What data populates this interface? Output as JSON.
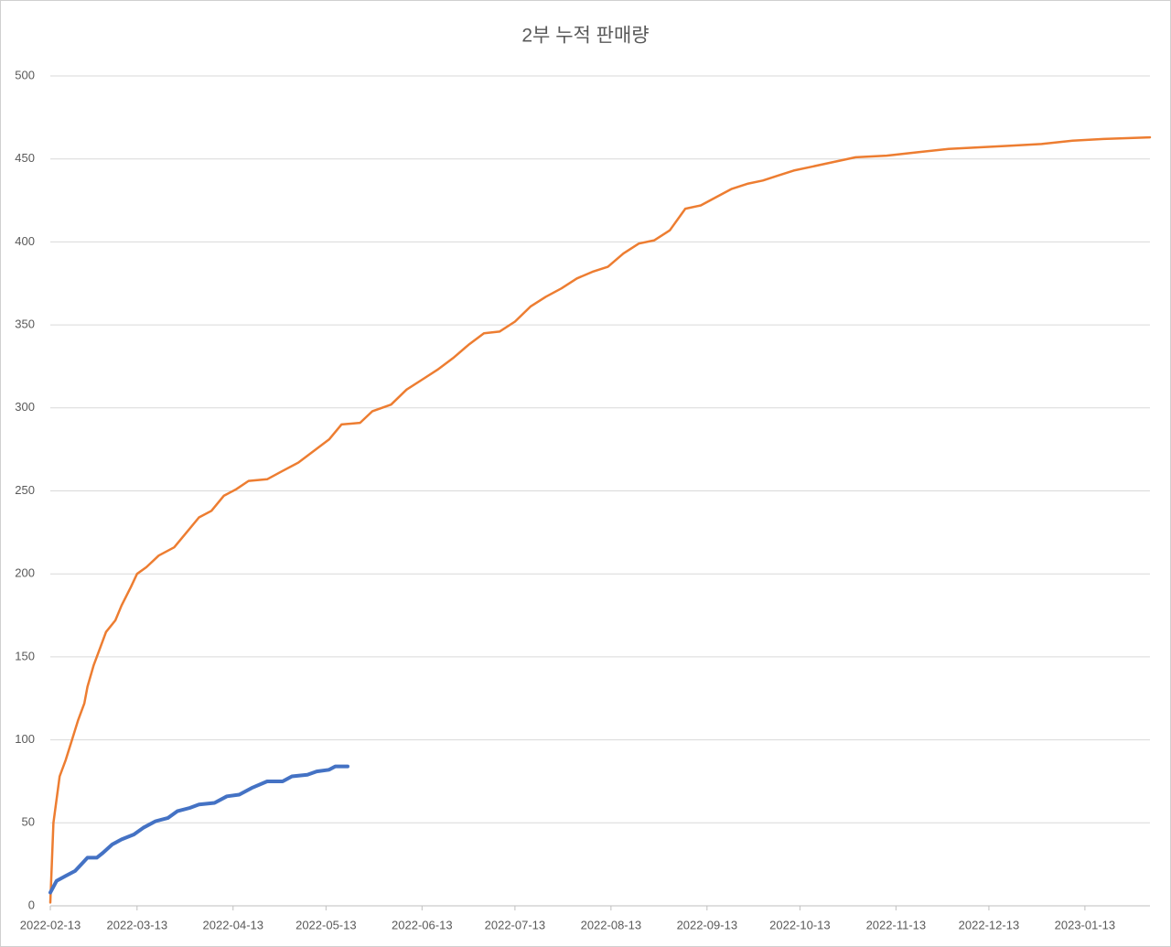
{
  "chart_data": {
    "type": "line",
    "title": "2부 누적 판매량",
    "xlim": [
      "2022-02-13",
      "2023-02-03"
    ],
    "xticks": [
      "2022-02-13",
      "2022-03-13",
      "2022-04-13",
      "2022-05-13",
      "2022-06-13",
      "2022-07-13",
      "2022-08-13",
      "2022-09-13",
      "2022-10-13",
      "2022-11-13",
      "2022-12-13",
      "2023-01-13"
    ],
    "ylim": [
      0,
      500
    ],
    "yticks": [
      0,
      50,
      100,
      150,
      200,
      250,
      300,
      350,
      400,
      450,
      500
    ],
    "grid": true,
    "series": [
      {
        "color": "#ed7d31",
        "width": 2.5,
        "x": [
          "2022-02-13",
          "2022-02-14",
          "2022-02-16",
          "2022-02-18",
          "2022-02-20",
          "2022-02-22",
          "2022-02-24",
          "2022-02-25",
          "2022-02-27",
          "2022-03-01",
          "2022-03-03",
          "2022-03-06",
          "2022-03-08",
          "2022-03-11",
          "2022-03-13",
          "2022-03-16",
          "2022-03-20",
          "2022-03-25",
          "2022-03-29",
          "2022-04-02",
          "2022-04-06",
          "2022-04-10",
          "2022-04-14",
          "2022-04-18",
          "2022-04-24",
          "2022-04-29",
          "2022-05-04",
          "2022-05-09",
          "2022-05-14",
          "2022-05-18",
          "2022-05-24",
          "2022-05-28",
          "2022-06-03",
          "2022-06-08",
          "2022-06-13",
          "2022-06-18",
          "2022-06-23",
          "2022-06-28",
          "2022-07-03",
          "2022-07-08",
          "2022-07-13",
          "2022-07-18",
          "2022-07-23",
          "2022-07-28",
          "2022-08-02",
          "2022-08-07",
          "2022-08-12",
          "2022-08-17",
          "2022-08-22",
          "2022-08-27",
          "2022-09-01",
          "2022-09-06",
          "2022-09-11",
          "2022-09-16",
          "2022-09-21",
          "2022-09-26",
          "2022-10-01",
          "2022-10-06",
          "2022-10-11",
          "2022-10-16",
          "2022-10-21",
          "2022-10-26",
          "2022-10-31",
          "2022-11-10",
          "2022-11-20",
          "2022-11-30",
          "2022-12-10",
          "2022-12-20",
          "2022-12-30",
          "2023-01-09",
          "2023-01-19",
          "2023-02-03"
        ],
        "values": [
          2,
          50,
          78,
          88,
          100,
          112,
          122,
          132,
          145,
          155,
          165,
          172,
          181,
          192,
          200,
          204,
          211,
          216,
          225,
          234,
          238,
          247,
          251,
          256,
          257,
          262,
          267,
          274,
          281,
          290,
          291,
          298,
          302,
          311,
          317,
          323,
          330,
          338,
          345,
          346,
          352,
          361,
          367,
          372,
          378,
          382,
          385,
          393,
          399,
          401,
          407,
          420,
          422,
          427,
          432,
          435,
          437,
          440,
          443,
          445,
          447,
          449,
          451,
          452,
          454,
          456,
          457,
          458,
          459,
          461,
          462,
          463
        ]
      },
      {
        "color": "#4472c4",
        "width": 4,
        "x": [
          "2022-02-13",
          "2022-02-15",
          "2022-02-18",
          "2022-02-21",
          "2022-02-23",
          "2022-02-25",
          "2022-02-28",
          "2022-03-02",
          "2022-03-05",
          "2022-03-08",
          "2022-03-12",
          "2022-03-15",
          "2022-03-19",
          "2022-03-23",
          "2022-03-26",
          "2022-03-30",
          "2022-04-02",
          "2022-04-07",
          "2022-04-11",
          "2022-04-15",
          "2022-04-19",
          "2022-04-24",
          "2022-04-29",
          "2022-05-02",
          "2022-05-07",
          "2022-05-10",
          "2022-05-14",
          "2022-05-16",
          "2022-05-20"
        ],
        "values": [
          8,
          15,
          18,
          21,
          25,
          29,
          29,
          32,
          37,
          40,
          43,
          47,
          51,
          53,
          57,
          59,
          61,
          62,
          66,
          67,
          71,
          75,
          75,
          78,
          79,
          81,
          82,
          84,
          84
        ]
      }
    ]
  }
}
